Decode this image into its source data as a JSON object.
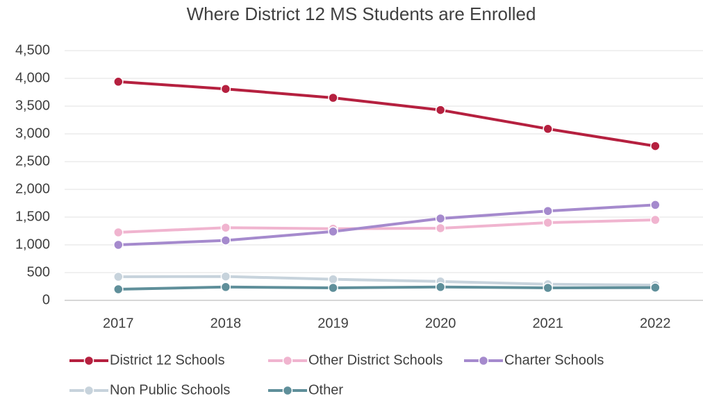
{
  "chart_data": {
    "type": "line",
    "title": "Where District 12 MS Students are Enrolled",
    "categories": [
      "2017",
      "2018",
      "2019",
      "2020",
      "2021",
      "2022"
    ],
    "series": [
      {
        "name": "District 12 Schools",
        "color": "#b5203f",
        "values": [
          3940,
          3810,
          3650,
          3430,
          3090,
          2780
        ]
      },
      {
        "name": "Other District Schools",
        "color": "#f0b4cf",
        "values": [
          1225,
          1310,
          1290,
          1300,
          1400,
          1450
        ]
      },
      {
        "name": "Charter Schools",
        "color": "#a58acd",
        "values": [
          1000,
          1080,
          1240,
          1475,
          1610,
          1720
        ]
      },
      {
        "name": "Non Public Schools",
        "color": "#c7d3dc",
        "values": [
          425,
          430,
          380,
          340,
          290,
          275
        ]
      },
      {
        "name": "Other",
        "color": "#5f8f9a",
        "values": [
          200,
          240,
          225,
          240,
          225,
          230
        ]
      }
    ],
    "ylim": [
      0,
      4500
    ],
    "yticks": [
      0,
      500,
      {
        "value": 1000,
        "label": "1,000"
      },
      {
        "value": 1500,
        "label": "1,500"
      },
      {
        "value": 2000,
        "label": "2,000"
      },
      {
        "value": 2500,
        "label": "2,500"
      },
      {
        "value": 3000,
        "label": "3,000"
      },
      {
        "value": 3500,
        "label": "3,500"
      },
      {
        "value": 4000,
        "label": "4,000"
      },
      {
        "value": 4500,
        "label": "4,500"
      }
    ],
    "grid": true,
    "legend": "bottom"
  }
}
